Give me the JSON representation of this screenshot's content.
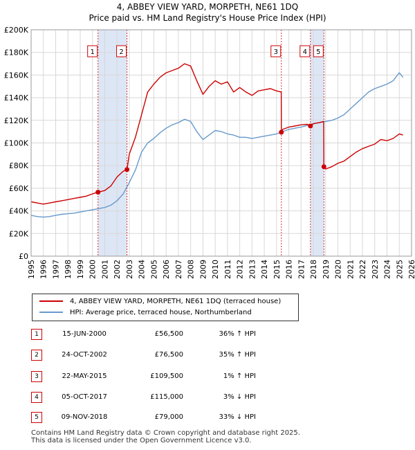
{
  "title_line1": "4, ABBEY VIEW YARD, MORPETH, NE61 1DQ",
  "title_line2": "Price paid vs. HM Land Registry's House Price Index (HPI)",
  "colors": {
    "property": "#cc0000",
    "hpi": "#6699cc",
    "shade": "#dde6f5",
    "grid": "#d8d8d8"
  },
  "chart_data": {
    "type": "line",
    "xlim": [
      1995,
      2026
    ],
    "ylim": [
      0,
      200000
    ],
    "y_ticks": [
      0,
      20000,
      40000,
      60000,
      80000,
      100000,
      120000,
      140000,
      160000,
      180000,
      200000
    ],
    "y_tick_labels": [
      "£0",
      "£20K",
      "£40K",
      "£60K",
      "£80K",
      "£100K",
      "£120K",
      "£140K",
      "£160K",
      "£180K",
      "£200K"
    ],
    "x_ticks": [
      1995,
      1996,
      1997,
      1998,
      1999,
      2000,
      2001,
      2002,
      2003,
      2004,
      2005,
      2006,
      2007,
      2008,
      2009,
      2010,
      2011,
      2012,
      2013,
      2014,
      2015,
      2016,
      2017,
      2018,
      2019,
      2020,
      2021,
      2022,
      2023,
      2024,
      2025,
      2026
    ],
    "shaded_spans": [
      [
        2000.45,
        2002.81
      ],
      [
        2017.76,
        2018.86
      ]
    ],
    "series": [
      {
        "name": "4, ABBEY VIEW YARD, MORPETH, NE61 1DQ (terraced house)",
        "color": "#cc0000",
        "x": [
          1995,
          1995.5,
          1996,
          1996.5,
          1997,
          1997.5,
          1998,
          1998.5,
          1999,
          1999.5,
          2000,
          2000.45,
          2001,
          2001.5,
          2002,
          2002.5,
          2002.81,
          2003,
          2003.5,
          2004,
          2004.5,
          2005,
          2005.5,
          2006,
          2006.5,
          2007,
          2007.5,
          2008,
          2008.5,
          2009,
          2009.5,
          2010,
          2010.5,
          2011,
          2011.5,
          2012,
          2012.5,
          2013,
          2013.5,
          2014,
          2014.5,
          2015,
          2015.38,
          2015.39,
          2015.5,
          2016,
          2016.5,
          2017,
          2017.5,
          2017.76,
          2018,
          2018.5,
          2018.84,
          2018.86,
          2019,
          2019.5,
          2020,
          2020.5,
          2021,
          2021.5,
          2022,
          2022.5,
          2023,
          2023.5,
          2024,
          2024.5,
          2025,
          2025.3
        ],
        "values": [
          48000,
          47000,
          46000,
          47000,
          48000,
          49000,
          50000,
          51000,
          52000,
          53000,
          55000,
          56500,
          58000,
          62000,
          70000,
          75000,
          76500,
          90000,
          105000,
          125000,
          145000,
          152000,
          158000,
          162000,
          164000,
          166000,
          170000,
          168000,
          155000,
          143000,
          150000,
          155000,
          152000,
          154000,
          145000,
          149000,
          145000,
          142000,
          146000,
          147000,
          148000,
          146000,
          145000,
          109500,
          112000,
          114000,
          115000,
          116000,
          116500,
          115000,
          117000,
          118000,
          119000,
          79000,
          77000,
          79000,
          82000,
          84000,
          88000,
          92000,
          95000,
          97000,
          99000,
          103000,
          102000,
          104000,
          108000,
          107000
        ]
      },
      {
        "name": "HPI: Average price, terraced house, Northumberland",
        "color": "#6699cc",
        "x": [
          1995,
          1995.5,
          1996,
          1996.5,
          1997,
          1997.5,
          1998,
          1998.5,
          1999,
          1999.5,
          2000,
          2000.5,
          2001,
          2001.5,
          2002,
          2002.5,
          2003,
          2003.5,
          2004,
          2004.5,
          2005,
          2005.5,
          2006,
          2006.5,
          2007,
          2007.5,
          2008,
          2008.5,
          2009,
          2009.5,
          2010,
          2010.5,
          2011,
          2011.5,
          2012,
          2012.5,
          2013,
          2013.5,
          2014,
          2014.5,
          2015,
          2015.5,
          2016,
          2016.5,
          2017,
          2017.5,
          2018,
          2018.5,
          2019,
          2019.5,
          2020,
          2020.5,
          2021,
          2021.5,
          2022,
          2022.5,
          2023,
          2023.5,
          2024,
          2024.5,
          2025,
          2025.3
        ],
        "values": [
          36000,
          35000,
          34500,
          35000,
          36000,
          37000,
          37500,
          38000,
          39000,
          40000,
          41000,
          42000,
          43000,
          45000,
          49000,
          55000,
          65000,
          76000,
          92000,
          100000,
          104000,
          109000,
          113000,
          116000,
          118000,
          121000,
          119000,
          110000,
          103000,
          107000,
          111000,
          110000,
          108000,
          107000,
          105000,
          105000,
          104000,
          105000,
          106000,
          107000,
          108000,
          110000,
          112000,
          113000,
          114000,
          115500,
          117000,
          118000,
          119000,
          120000,
          122000,
          125000,
          130000,
          135000,
          140000,
          145000,
          148000,
          150000,
          152000,
          155000,
          162000,
          158000
        ]
      }
    ],
    "sales": [
      {
        "marker": "1",
        "x": 2000.45,
        "value": 56500
      },
      {
        "marker": "2",
        "x": 2002.81,
        "value": 76500
      },
      {
        "marker": "3",
        "x": 2015.39,
        "value": 109500
      },
      {
        "marker": "4",
        "x": 2017.76,
        "value": 115000
      },
      {
        "marker": "5",
        "x": 2018.86,
        "value": 79000
      }
    ]
  },
  "legend": {
    "property_label": "4, ABBEY VIEW YARD, MORPETH, NE61 1DQ (terraced house)",
    "hpi_label": "HPI: Average price, terraced house, Northumberland"
  },
  "transactions": [
    {
      "marker": "1",
      "date": "15-JUN-2000",
      "price": "£56,500",
      "hpi": "36% ↑ HPI"
    },
    {
      "marker": "2",
      "date": "24-OCT-2002",
      "price": "£76,500",
      "hpi": "35% ↑ HPI"
    },
    {
      "marker": "3",
      "date": "22-MAY-2015",
      "price": "£109,500",
      "hpi": "1% ↑ HPI"
    },
    {
      "marker": "4",
      "date": "05-OCT-2017",
      "price": "£115,000",
      "hpi": "3% ↓ HPI"
    },
    {
      "marker": "5",
      "date": "09-NOV-2018",
      "price": "£79,000",
      "hpi": "33% ↓ HPI"
    }
  ],
  "footer_line1": "Contains HM Land Registry data © Crown copyright and database right 2025.",
  "footer_line2": "This data is licensed under the Open Government Licence v3.0."
}
